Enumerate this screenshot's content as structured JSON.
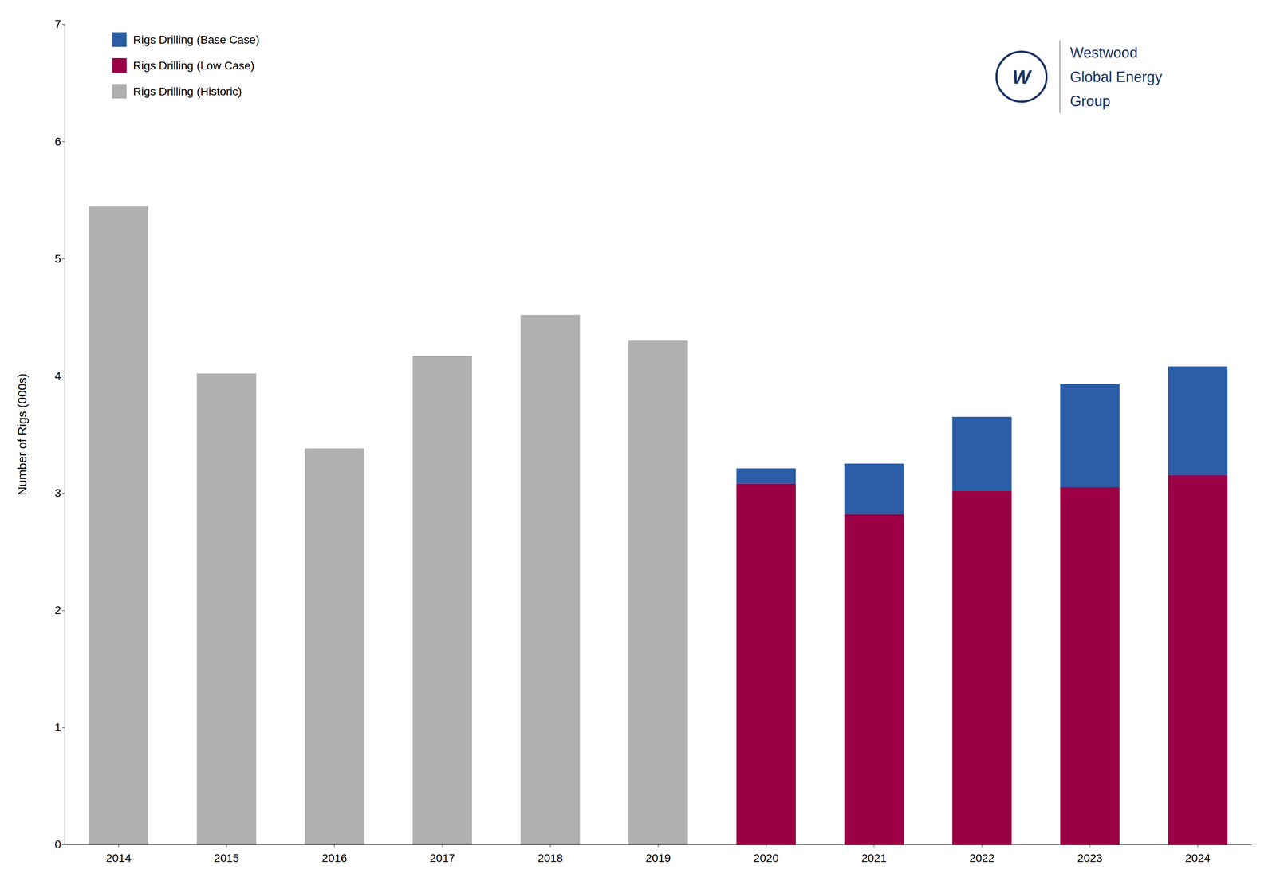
{
  "chart_data": {
    "type": "bar",
    "stacked": true,
    "y_label": "Number of Rigs (000s)",
    "categories": [
      "2014",
      "2015",
      "2016",
      "2017",
      "2018",
      "2019",
      "2020",
      "2021",
      "2022",
      "2023",
      "2024"
    ],
    "series": [
      {
        "name": "Rigs Drilling (Historic)",
        "color": "#b0b0b0",
        "values": [
          5.45,
          4.02,
          3.38,
          4.17,
          4.52,
          4.3,
          0,
          0,
          0,
          0,
          0
        ]
      },
      {
        "name": "Rigs Drilling (Low Case)",
        "color": "#9b0045",
        "values": [
          0,
          0,
          0,
          0,
          0,
          0,
          3.08,
          2.82,
          3.02,
          3.05,
          3.15
        ]
      },
      {
        "name": "Rigs Drilling (Base Case)",
        "color": "#2b5ea7",
        "values": [
          0,
          0,
          0,
          0,
          0,
          0,
          0.13,
          0.43,
          0.63,
          0.88,
          0.93
        ]
      }
    ],
    "ylim": [
      0,
      7
    ],
    "yticks": [
      0,
      1,
      2,
      3,
      4,
      5,
      6,
      7
    ],
    "grid": false,
    "legend": "upper-left",
    "annotations": [
      "W",
      "Westwood",
      "Global Energy",
      "Group"
    ]
  }
}
